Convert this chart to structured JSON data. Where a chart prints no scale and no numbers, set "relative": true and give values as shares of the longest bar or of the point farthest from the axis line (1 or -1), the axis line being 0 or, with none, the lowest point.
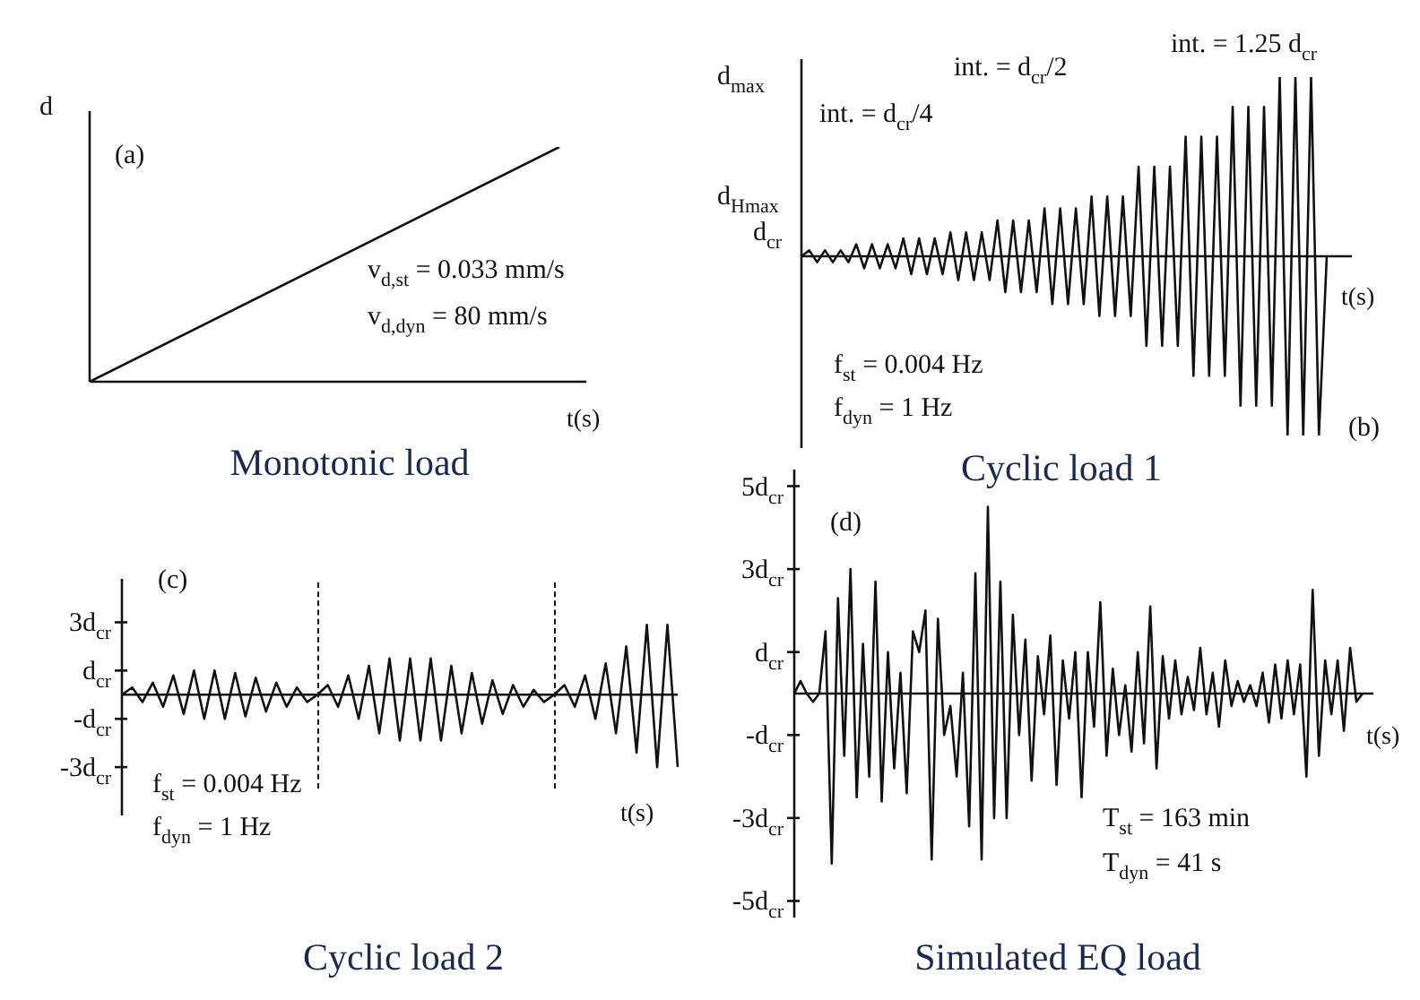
{
  "chart_data": [
    {
      "type": "line",
      "title": "Monotonic load",
      "xlabel": "t(s)",
      "ylabel": "d",
      "relative": true,
      "tick_labels": false,
      "color": "#111111",
      "categories": [
        null,
        null
      ],
      "values": [
        0,
        1
      ],
      "annotations": [
        "(a)",
        "v$_{d,st}$ = 0.033 mm/s",
        "v$_{d,dyn}$ = 80 mm/s"
      ]
    },
    {
      "type": "line",
      "title": "Cyclic load 1",
      "xlabel": "t(s)",
      "relative": true,
      "tick_labels": false,
      "color": "#111111",
      "categories": [
        null,
        null,
        null,
        null,
        null,
        null,
        null,
        null,
        null,
        null,
        null,
        null,
        null,
        null,
        null,
        null,
        null,
        null,
        null,
        null,
        null,
        null,
        null,
        null,
        null,
        null,
        null,
        null,
        null,
        null,
        null,
        null,
        null,
        null,
        null,
        null,
        null,
        null,
        null,
        null,
        null,
        null,
        null,
        null,
        null,
        null,
        null,
        null,
        null,
        null,
        null,
        null,
        null,
        null,
        null,
        null,
        null,
        null,
        null,
        null,
        null,
        null,
        null,
        null,
        null,
        null,
        null,
        null
      ],
      "values": [
        0,
        0.033,
        -0.033,
        0.033,
        -0.033,
        0.033,
        -0.033,
        0.067,
        -0.067,
        0.067,
        -0.067,
        0.067,
        -0.067,
        0.1,
        -0.1,
        0.1,
        -0.1,
        0.1,
        -0.1,
        0.133,
        -0.133,
        0.133,
        -0.133,
        0.133,
        -0.133,
        0.2,
        -0.2,
        0.2,
        -0.2,
        0.2,
        -0.2,
        0.267,
        -0.267,
        0.267,
        -0.267,
        0.267,
        -0.267,
        0.333,
        -0.333,
        0.333,
        -0.333,
        0.333,
        -0.333,
        0.5,
        -0.5,
        0.5,
        -0.5,
        0.5,
        -0.5,
        0.667,
        -0.667,
        0.667,
        -0.667,
        0.667,
        -0.667,
        0.833,
        -0.833,
        0.833,
        -0.833,
        0.833,
        -0.833,
        1,
        -1,
        1,
        -1,
        1,
        -1,
        0
      ],
      "annotations": [
        "int. = 1.25 d$_{cr}$",
        "int. = d$_{cr}$/2",
        "int. = d$_{cr}$/4",
        "f$_{st}$ = 0.004 Hz",
        "f$_{dyn}$ = 1 Hz",
        "(b)",
        "d$_{max}$",
        "d$_{Hmax}$",
        "d$_{cr}$"
      ]
    },
    {
      "type": "line",
      "title": "Cyclic load 2",
      "xlabel": "t(s)",
      "tick_labels": "y",
      "color": "#111111",
      "ylim": [
        -5,
        4.8
      ],
      "yticks": [
        {
          "value": 3,
          "label": "3d$_{cr}$"
        },
        {
          "value": 1,
          "label": "d$_{cr}$"
        },
        {
          "value": -1,
          "label": "-d$_{cr}$"
        },
        {
          "value": -3,
          "label": "-3d$_{cr}$"
        }
      ],
      "categories": [
        null,
        null,
        null,
        null,
        null,
        null,
        null,
        null,
        null,
        null,
        null,
        null,
        null,
        null,
        null,
        null,
        null,
        null,
        null,
        null,
        null,
        null,
        null,
        null,
        null,
        null,
        null,
        null,
        null,
        null,
        null,
        null,
        null,
        null,
        null,
        null,
        null,
        null,
        null,
        null,
        null,
        null,
        null,
        null,
        null,
        null,
        null,
        null,
        null,
        null,
        null,
        null,
        null,
        null,
        null
      ],
      "values": [
        0,
        0.3,
        -0.3,
        0.5,
        -0.5,
        0.8,
        -0.8,
        1,
        -1,
        1,
        -1,
        0.9,
        -0.9,
        0.7,
        -0.7,
        0.5,
        -0.5,
        0.3,
        -0.3,
        0,
        0.4,
        -0.5,
        0.8,
        -1,
        1.2,
        -1.6,
        1.5,
        -1.9,
        1.5,
        -1.9,
        1.5,
        -1.9,
        1.2,
        -1.6,
        0.9,
        -1.2,
        0.6,
        -0.8,
        0.4,
        -0.5,
        0.2,
        -0.3,
        0,
        0.4,
        -0.5,
        0.8,
        -1,
        1.3,
        -1.6,
        2,
        -2.4,
        2.9,
        -3,
        2.9,
        -3
      ],
      "annotations": [
        "(c)",
        "f$_{st}$ = 0.004 Hz",
        "f$_{dyn}$ = 1 Hz"
      ]
    },
    {
      "type": "line",
      "title": "Simulated EQ load",
      "xlabel": "t(s)",
      "tick_labels": "y",
      "color": "#111111",
      "ylim": [
        -5.4,
        5.4
      ],
      "yticks": [
        {
          "value": 5,
          "label": "5d$_{cr}$"
        },
        {
          "value": 3,
          "label": "3d$_{cr}$"
        },
        {
          "value": 1,
          "label": "d$_{cr}$"
        },
        {
          "value": -1,
          "label": "-d$_{cr}$"
        },
        {
          "value": -3,
          "label": "-3d$_{cr}$"
        },
        {
          "value": -5,
          "label": "-5d$_{cr}$"
        }
      ],
      "categories": [
        null,
        null,
        null,
        null,
        null,
        null,
        null,
        null,
        null,
        null,
        null,
        null,
        null,
        null,
        null,
        null,
        null,
        null,
        null,
        null,
        null,
        null,
        null,
        null,
        null,
        null,
        null,
        null,
        null,
        null,
        null,
        null,
        null,
        null,
        null,
        null,
        null,
        null,
        null,
        null,
        null,
        null,
        null,
        null,
        null,
        null,
        null,
        null,
        null,
        null,
        null,
        null,
        null,
        null,
        null,
        null,
        null,
        null,
        null,
        null,
        null,
        null,
        null,
        null,
        null,
        null,
        null,
        null,
        null,
        null,
        null,
        null,
        null,
        null,
        null,
        null,
        null,
        null,
        null,
        null,
        null,
        null,
        null,
        null,
        null,
        null,
        null,
        null,
        null,
        null,
        null,
        null
      ],
      "values": [
        0,
        0.3,
        0,
        -0.2,
        0,
        1.5,
        -4.1,
        2.3,
        -1.5,
        3.0,
        -2.5,
        1.2,
        -2.0,
        2.7,
        -2.6,
        1.0,
        -1.8,
        0.5,
        -2.4,
        1.5,
        1.0,
        2.0,
        -4.0,
        1.8,
        -1.0,
        -0.3,
        -2.0,
        0.5,
        -3.2,
        2.9,
        -4.0,
        4.5,
        -3.0,
        2.7,
        -3.0,
        1.9,
        -1.0,
        1.3,
        -2.1,
        0.9,
        -0.5,
        1.4,
        -2.2,
        0.8,
        -0.6,
        1.0,
        -2.5,
        1.0,
        -0.8,
        2.2,
        -1.5,
        0.6,
        -1.0,
        0.2,
        -1.4,
        1.0,
        -1.2,
        2.1,
        -1.8,
        0.9,
        -0.6,
        0.8,
        -0.5,
        0.4,
        -0.4,
        1.1,
        -0.5,
        0.5,
        -0.8,
        0.8,
        -0.3,
        0.3,
        -0.2,
        0.2,
        -0.3,
        0.5,
        -0.7,
        0.7,
        -0.6,
        0.8,
        -0.5,
        0.7,
        -2.0,
        2.5,
        -1.5,
        0.8,
        -0.5,
        0.8,
        -0.9,
        1.1,
        -0.2,
        0
      ],
      "annotations": [
        "(d)",
        "T$_{st}$ = 163 min",
        "T$_{dyn}$ = 41 s"
      ]
    }
  ]
}
